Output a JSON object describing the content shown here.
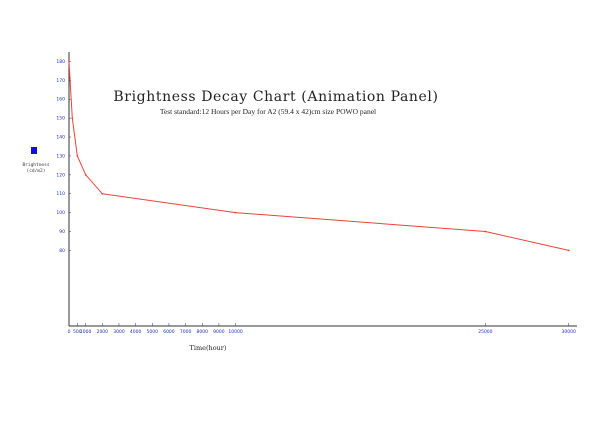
{
  "chart_data": {
    "type": "line",
    "title": "Brightness Decay Chart (Animation Panel)",
    "subtitle": "Test standard:12 Hours per Day for A2 (59.4 x 42)cm size POWO panel",
    "xlabel": "Time(hour)",
    "ylabel": "Brightness",
    "ylabel_unit": "(cd/m2)",
    "legend_color": "#1010dd",
    "line_color": "#e8443a",
    "axis_color": "#333333",
    "tick_color": "#1a2fb5",
    "xlim": [
      0,
      30500
    ],
    "ylim": [
      40,
      185
    ],
    "x_ticks": [
      0,
      500,
      1000,
      2000,
      3000,
      4000,
      5000,
      6000,
      7000,
      8000,
      9000,
      10000,
      25000,
      30000
    ],
    "x_tick_labels": [
      "0",
      "500",
      "1000",
      "2000",
      "3000",
      "4000",
      "5000",
      "6000",
      "7000",
      "8000",
      "9000",
      "10000",
      "25000",
      "30000"
    ],
    "y_ticks": [
      80,
      90,
      100,
      110,
      120,
      130,
      140,
      150,
      160,
      170,
      180
    ],
    "y_tick_labels": [
      "80",
      "90",
      "100",
      "110",
      "120",
      "130",
      "140",
      "150",
      "160",
      "170",
      "180"
    ],
    "series": [
      {
        "x": [
          0,
          200,
          500,
          1000,
          2000,
          10000,
          25000,
          30000
        ],
        "y": [
          180,
          150,
          130,
          120,
          110,
          100,
          90,
          80
        ]
      }
    ]
  }
}
